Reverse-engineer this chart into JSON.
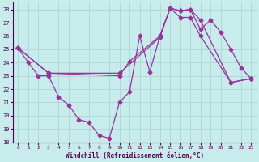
{
  "xlabel": "Windchill (Refroidissement éolien,°C)",
  "xlim": [
    -0.5,
    23.5
  ],
  "ylim": [
    18,
    28.5
  ],
  "yticks": [
    18,
    19,
    20,
    21,
    22,
    23,
    24,
    25,
    26,
    27,
    28
  ],
  "xticks": [
    0,
    1,
    2,
    3,
    4,
    5,
    6,
    7,
    8,
    9,
    10,
    11,
    12,
    13,
    14,
    15,
    16,
    17,
    18,
    19,
    20,
    21,
    22,
    23
  ],
  "background_color": "#c8ecec",
  "grid_color": "#b0d8d8",
  "line_color": "#993399",
  "line1_x": [
    0,
    1,
    2,
    3,
    4,
    5,
    6,
    7,
    8,
    9,
    10,
    11,
    12,
    13,
    14,
    15,
    16,
    17,
    18,
    19,
    20,
    21,
    22,
    23
  ],
  "line1_y": [
    25.1,
    24.0,
    23.0,
    23.0,
    21.4,
    20.8,
    19.7,
    19.5,
    18.5,
    18.3,
    21.0,
    21.8,
    26.0,
    23.3,
    26.0,
    28.1,
    27.9,
    28.0,
    26.5,
    27.2,
    26.3,
    25.0,
    23.6,
    22.8
  ],
  "line2_x": [
    0,
    3,
    10,
    14,
    15,
    16,
    17,
    18,
    21,
    23
  ],
  "line2_y": [
    25.1,
    23.2,
    23.2,
    25.9,
    28.1,
    27.4,
    27.4,
    26.0,
    22.5,
    22.8
  ],
  "line3_x": [
    0,
    3,
    10,
    11,
    14,
    15,
    16,
    17,
    18,
    21,
    23
  ],
  "line3_y": [
    25.1,
    23.2,
    23.0,
    24.1,
    26.0,
    28.1,
    27.9,
    28.0,
    27.2,
    22.5,
    22.8
  ]
}
